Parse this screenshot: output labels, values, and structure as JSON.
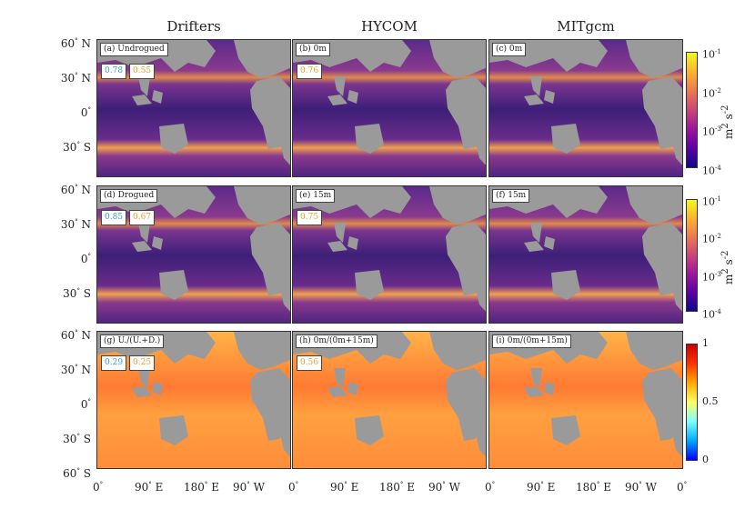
{
  "chart_data": {
    "type": "heatmap",
    "column_titles": [
      "Drifters",
      "HYCOM",
      "MITgcm"
    ],
    "panels": [
      {
        "label": "(a) Undrogued",
        "corr": [
          "0.78",
          "0.55"
        ]
      },
      {
        "label": "(b) 0m",
        "corr": [
          "0.76"
        ]
      },
      {
        "label": "(c) 0m",
        "corr": []
      },
      {
        "label": "(d) Drogued",
        "corr": [
          "0.85",
          "0.67"
        ]
      },
      {
        "label": "(e) 15m",
        "corr": [
          "0.75"
        ]
      },
      {
        "label": "(f) 15m",
        "corr": []
      },
      {
        "label": "(g) U./(U.+D.)",
        "corr": [
          "0.29",
          "0.25"
        ]
      },
      {
        "label": "(h) 0m/(0m+15m)",
        "corr": [
          "0.56"
        ]
      },
      {
        "label": "(i) 0m/(0m+15m)",
        "corr": []
      }
    ],
    "y_ticks": [
      {
        "deg": "60",
        "hem": "N"
      },
      {
        "deg": "30",
        "hem": "N"
      },
      {
        "deg": "0",
        "hem": ""
      },
      {
        "deg": "30",
        "hem": "S"
      },
      {
        "deg": "60",
        "hem": "S"
      }
    ],
    "x_ticks": [
      "0",
      "90 E",
      "180 E",
      "90 W",
      "0"
    ],
    "colorbar_log": {
      "ticks": [
        "10",
        "10",
        "10",
        "10"
      ],
      "exponents": [
        "-1",
        "-2",
        "-3",
        "-4"
      ],
      "unit": "m",
      "unit_exp1": "2",
      "unit_mid": " s",
      "unit_exp2": "-2",
      "range": [
        0.0001,
        0.1
      ],
      "scale": "log",
      "colormap": "plasma"
    },
    "colorbar_ratio": {
      "ticks": [
        "1",
        "0.5",
        "0"
      ],
      "range": [
        0,
        1
      ],
      "colormap": "jet"
    },
    "corr_colors": [
      "#3a9bd9",
      "#e8a02a"
    ],
    "land_color": "#9a9a9a"
  }
}
